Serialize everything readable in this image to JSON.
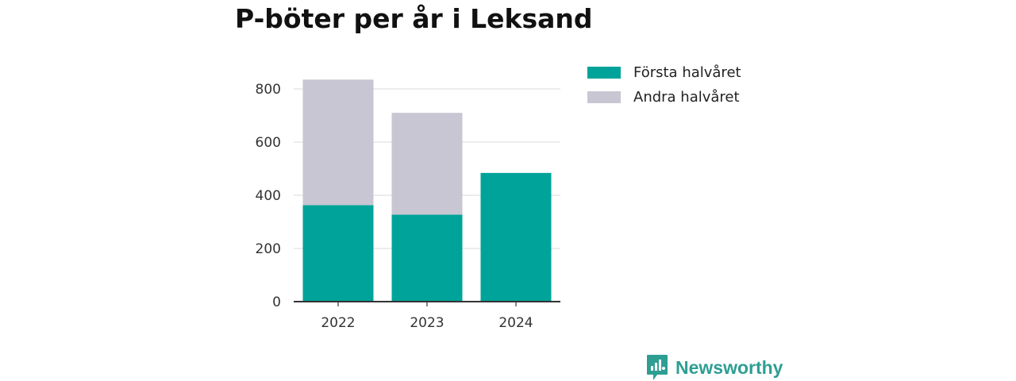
{
  "chart_data": {
    "type": "bar",
    "stacked": true,
    "title": "P-böter per år i Leksand",
    "categories": [
      "2022",
      "2023",
      "2024"
    ],
    "series": [
      {
        "name": "Första halvåret",
        "values": [
          363,
          327,
          484
        ],
        "color": "#00a39a"
      },
      {
        "name": "Andra halvåret",
        "values": [
          472,
          383,
          0
        ],
        "color": "#c8c6d2"
      }
    ],
    "xlabel": "",
    "ylabel": "",
    "ylim": [
      0,
      850
    ],
    "yticks": [
      "0",
      "200",
      "400",
      "600",
      "800"
    ],
    "grid": true,
    "legend_position": "right"
  },
  "brand": {
    "name": "Newsworthy",
    "color": "#2e9e93",
    "icon": "newsworthy-logo-icon"
  }
}
